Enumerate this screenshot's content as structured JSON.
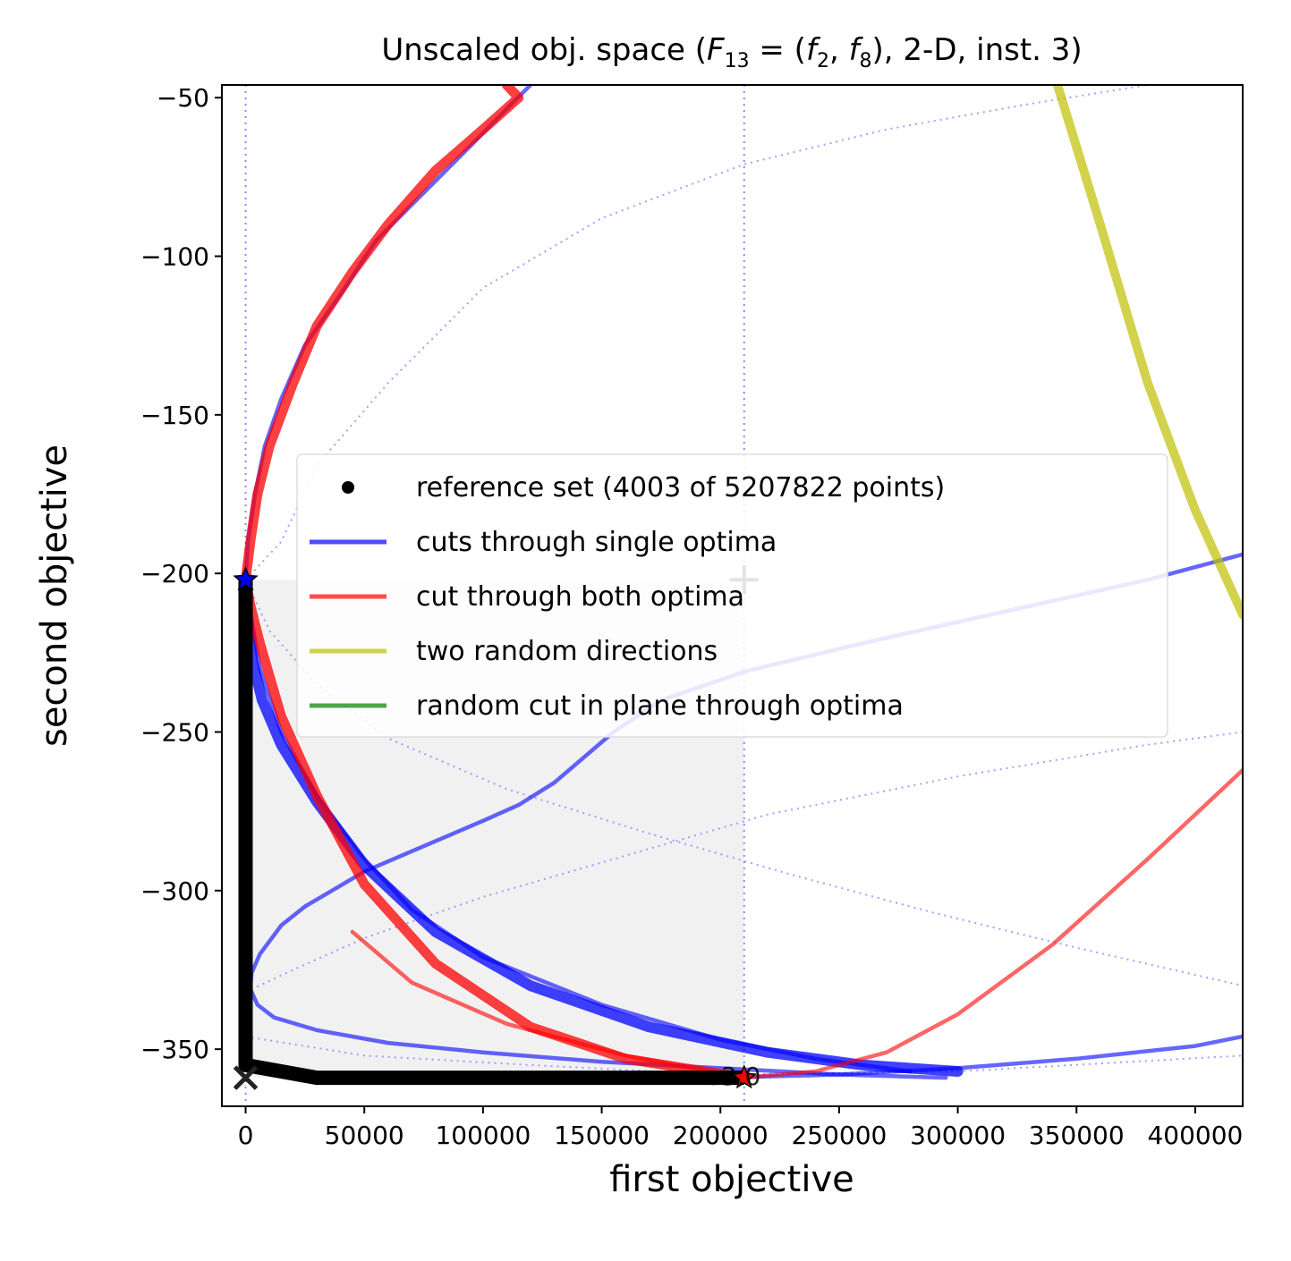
{
  "chart_data": {
    "type": "line",
    "title": {
      "prefix": "Unscaled obj. space (",
      "F": "F",
      "F_sub": "13",
      "eq": " = (",
      "f1": "f",
      "f1_sub": "2",
      "comma": ", ",
      "f2": "f",
      "f2_sub": "8",
      "suffix": "), 2-D, inst. 3)"
    },
    "xlabel": "first objective",
    "ylabel": "second objective",
    "xlim": [
      -10000,
      420000
    ],
    "ylim": [
      -368,
      -46
    ],
    "xticks": [
      0,
      50000,
      100000,
      150000,
      200000,
      250000,
      300000,
      350000,
      400000
    ],
    "xtick_labels": [
      "0",
      "50000",
      "100000",
      "150000",
      "200000",
      "250000",
      "300000",
      "350000",
      "400000"
    ],
    "yticks": [
      -50,
      -100,
      -150,
      -200,
      -250,
      -300,
      -350
    ],
    "ytick_labels": [
      "−50",
      "−100",
      "−150",
      "−200",
      "−250",
      "−300",
      "−350"
    ],
    "watermark": "v3.0",
    "legend": {
      "position": "center-right",
      "entries": [
        {
          "label": "reference set (4003 of 5207822 points)",
          "color": "#000000",
          "marker": "dot"
        },
        {
          "label": "cuts through single optima",
          "color": "#0000ff",
          "marker": "line"
        },
        {
          "label": "cut through both optima",
          "color": "#ff0000",
          "marker": "line"
        },
        {
          "label": "two random directions",
          "color": "#bfbf00",
          "marker": "line"
        },
        {
          "label": "random cut in plane through optima",
          "color": "#008000",
          "marker": "line"
        }
      ]
    },
    "optima": {
      "opt1": [
        0,
        -202
      ],
      "opt2": [
        210000,
        -359
      ],
      "ideal": [
        0,
        -359
      ],
      "nadir": [
        210000,
        -202
      ]
    },
    "reference_front": {
      "color": "#000000",
      "points": [
        [
          0,
          -202
        ],
        [
          0,
          -240
        ],
        [
          0,
          -280
        ],
        [
          0,
          -320
        ],
        [
          0,
          -355
        ],
        [
          30000,
          -359
        ],
        [
          100000,
          -359
        ],
        [
          170000,
          -359
        ],
        [
          210000,
          -359
        ]
      ]
    },
    "series": [
      {
        "name": "cuts through single optima",
        "color": "#0000ff",
        "values": [
          [
            295000,
            -359
          ],
          [
            250000,
            -358
          ],
          [
            200000,
            -356
          ],
          [
            150000,
            -354
          ],
          [
            100000,
            -351
          ],
          [
            60000,
            -348
          ],
          [
            30000,
            -344
          ],
          [
            12000,
            -340
          ],
          [
            5000,
            -336
          ],
          [
            2000,
            -331
          ],
          [
            2500,
            -326
          ],
          [
            6000,
            -320
          ],
          [
            10000,
            -316
          ],
          [
            15000,
            -311
          ],
          [
            25000,
            -305
          ],
          [
            50000,
            -294
          ],
          [
            75000,
            -286
          ],
          [
            100000,
            -278
          ],
          [
            115000,
            -273
          ],
          [
            130000,
            -266
          ],
          [
            155000,
            -250
          ],
          [
            175000,
            -240
          ],
          [
            210000,
            -231
          ],
          [
            260000,
            -222
          ],
          [
            320000,
            -212
          ],
          [
            380000,
            -202
          ],
          [
            420000,
            -194
          ]
        ]
      },
      {
        "name": "cuts through single optima",
        "color": "#0000ff",
        "values": [
          [
            0,
            -202
          ],
          [
            1000,
            -215
          ],
          [
            3000,
            -228
          ],
          [
            7000,
            -240
          ],
          [
            15000,
            -254
          ],
          [
            30000,
            -272
          ],
          [
            50000,
            -292
          ],
          [
            80000,
            -313
          ],
          [
            120000,
            -330
          ],
          [
            170000,
            -343
          ],
          [
            220000,
            -351
          ],
          [
            260000,
            -355
          ],
          [
            300000,
            -357
          ]
        ]
      },
      {
        "name": "cuts through single optima",
        "color": "#0000ff",
        "values": [
          [
            280000,
            -357
          ],
          [
            240000,
            -353
          ],
          [
            200000,
            -347
          ],
          [
            150000,
            -336
          ],
          [
            100000,
            -321
          ],
          [
            70000,
            -306
          ],
          [
            50000,
            -290
          ],
          [
            30000,
            -270
          ],
          [
            15000,
            -250
          ],
          [
            6000,
            -230
          ],
          [
            2000,
            -212
          ],
          [
            0,
            -202
          ],
          [
            1000,
            -190
          ],
          [
            4000,
            -175
          ],
          [
            8000,
            -160
          ],
          [
            15000,
            -145
          ],
          [
            25000,
            -128
          ],
          [
            40000,
            -112
          ],
          [
            55000,
            -95
          ],
          [
            75000,
            -80
          ],
          [
            95000,
            -65
          ],
          [
            112000,
            -52
          ],
          [
            120000,
            -46
          ]
        ]
      },
      {
        "name": "cuts through single optima",
        "color": "#0000ff",
        "values": [
          [
            200000,
            -359
          ],
          [
            250000,
            -358
          ],
          [
            300000,
            -356
          ],
          [
            350000,
            -353
          ],
          [
            400000,
            -349
          ],
          [
            420000,
            -346
          ]
        ]
      },
      {
        "name": "cut through both optima",
        "color": "#ff0000",
        "values": [
          [
            45000,
            -313
          ],
          [
            70000,
            -329
          ],
          [
            110000,
            -342
          ],
          [
            160000,
            -352
          ],
          [
            210000,
            -359
          ],
          [
            240000,
            -357
          ],
          [
            270000,
            -351
          ],
          [
            300000,
            -339
          ],
          [
            340000,
            -317
          ],
          [
            380000,
            -290
          ],
          [
            420000,
            -262
          ]
        ]
      },
      {
        "name": "cut through both optima",
        "color": "#ff0000",
        "values": [
          [
            210000,
            -359
          ],
          [
            160000,
            -353
          ],
          [
            120000,
            -343
          ],
          [
            80000,
            -323
          ],
          [
            50000,
            -298
          ],
          [
            30000,
            -270
          ],
          [
            15000,
            -245
          ],
          [
            6000,
            -222
          ],
          [
            2000,
            -210
          ],
          [
            0,
            -202
          ],
          [
            2000,
            -190
          ],
          [
            5000,
            -175
          ],
          [
            10000,
            -160
          ],
          [
            20000,
            -140
          ],
          [
            30000,
            -122
          ],
          [
            45000,
            -105
          ],
          [
            60000,
            -90
          ],
          [
            80000,
            -73
          ],
          [
            100000,
            -60
          ],
          [
            115000,
            -50
          ],
          [
            110000,
            -46
          ]
        ]
      },
      {
        "name": "two random directions",
        "color": "#bfbf00",
        "values": [
          [
            342000,
            -46
          ],
          [
            360000,
            -90
          ],
          [
            380000,
            -140
          ],
          [
            400000,
            -180
          ],
          [
            420000,
            -213
          ]
        ]
      }
    ],
    "dotted_guides": {
      "color": "#8888ff",
      "curves": [
        [
          [
            0,
            -202
          ],
          [
            15000,
            -190
          ],
          [
            30000,
            -166
          ],
          [
            60000,
            -140
          ],
          [
            100000,
            -110
          ],
          [
            150000,
            -88
          ],
          [
            210000,
            -71
          ],
          [
            270000,
            -60
          ],
          [
            330000,
            -52
          ],
          [
            380000,
            -46
          ]
        ],
        [
          [
            0,
            -202
          ],
          [
            10000,
            -218
          ],
          [
            30000,
            -235
          ],
          [
            60000,
            -252
          ],
          [
            110000,
            -268
          ],
          [
            170000,
            -282
          ],
          [
            230000,
            -295
          ],
          [
            290000,
            -307
          ],
          [
            350000,
            -318
          ],
          [
            420000,
            -330
          ]
        ],
        [
          [
            0,
            -332
          ],
          [
            20000,
            -325
          ],
          [
            50000,
            -315
          ],
          [
            100000,
            -302
          ],
          [
            160000,
            -289
          ],
          [
            220000,
            -276
          ],
          [
            300000,
            -264
          ],
          [
            380000,
            -254
          ],
          [
            420000,
            -250
          ]
        ],
        [
          [
            0,
            -346
          ],
          [
            50000,
            -352
          ],
          [
            120000,
            -355
          ],
          [
            200000,
            -358
          ],
          [
            300000,
            -357
          ],
          [
            420000,
            -352
          ]
        ]
      ]
    }
  }
}
